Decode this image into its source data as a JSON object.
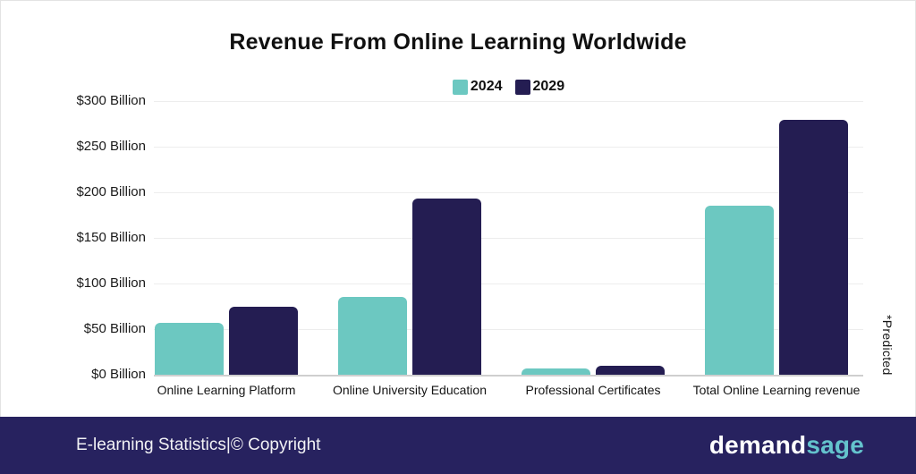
{
  "chart_data": {
    "type": "bar",
    "title": "Revenue From Online Learning Worldwide",
    "categories": [
      "Online Learning Platform",
      "Online University Education",
      "Professional Certificates",
      "Total Online Learning revenue"
    ],
    "series": [
      {
        "name": "2024",
        "color": "#6cc8c1",
        "values": [
          57,
          85,
          7,
          185
        ]
      },
      {
        "name": "2029",
        "color": "#241d52",
        "values": [
          75,
          193,
          10,
          279
        ]
      }
    ],
    "unit": "USD Billion",
    "ylim": [
      0,
      300
    ],
    "ytick_labels": [
      "$300 Billion",
      "$250 Billion",
      "$200 Billion",
      "$150 Billion",
      "$100 Billion",
      "$50 Billion",
      "$0 Billion"
    ],
    "grid": "horizontal",
    "legend_position": "top-center",
    "annotation": "*Predicted"
  },
  "footer": {
    "copyright_text": "E-learning Statistics|© Copyright",
    "logo_demand": "demand",
    "logo_sage": "sage"
  },
  "colors": {
    "bar_2024": "#6cc8c1",
    "bar_2029": "#241d52",
    "footer_bg": "#27225f",
    "logo_sage_text": "#64c3cd",
    "gridline": "#ededed",
    "title_text": "#101010",
    "footer_text": "#f2f2f5"
  }
}
